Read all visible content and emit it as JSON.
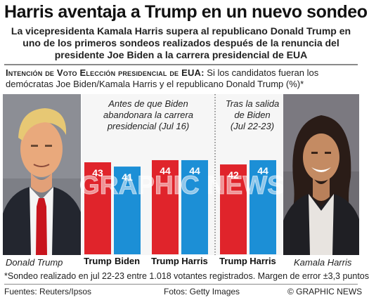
{
  "headline": "Harris aventaja a Trump en un nuevo sondeo",
  "subheadline": "La vicepresidenta Kamala Harris supera al republicano Donald Trump en uno de los primeros sondeos realizados después de la renuncia del presidente Joe Biden a la carrera presidencial de EUA",
  "question": {
    "label": "Intención de Voto Elección presidencial de  EUA:",
    "text": " Si los candidatos fueran los demócratas Joe Biden/Kamala Harris y el republicano Donald Trump (%)*"
  },
  "photos": {
    "left_caption": "Donald Trump",
    "right_caption": "Kamala Harris"
  },
  "watermark": "GRAPHIC NEWS",
  "footnote": "*Sondeo realizado en jul 22-23 entre 1.018 votantes registrados. Margen de error ±3,3 puntos",
  "sources": {
    "left": "Fuentes: Reuters/Ipsos",
    "middle": "Fotos: Getty Images",
    "right": "© GRAPHIC NEWS"
  },
  "colors": {
    "republican": "#e0242b",
    "democrat": "#1c8fd6",
    "background": "#f6f6f6"
  },
  "chart_data": {
    "type": "bar",
    "title": "Intención de Voto Elección presidencial de EUA",
    "ylabel": "%",
    "ylim": [
      0,
      50
    ],
    "grid": false,
    "groups": [
      {
        "name": "Antes de que Biden abandonara la carrera presidencial (Jul 16)",
        "categories": [
          "Trump",
          "Biden"
        ],
        "values": [
          43,
          41
        ],
        "colors": [
          "#e0242b",
          "#1c8fd6"
        ]
      },
      {
        "name": "",
        "categories": [
          "Trump",
          "Harris"
        ],
        "values": [
          44,
          44
        ],
        "colors": [
          "#e0242b",
          "#1c8fd6"
        ]
      },
      {
        "name": "Tras la salida de Biden (Jul 22-23)",
        "categories": [
          "Trump",
          "Harris"
        ],
        "values": [
          42,
          44
        ],
        "colors": [
          "#e0242b",
          "#1c8fd6"
        ]
      }
    ]
  }
}
